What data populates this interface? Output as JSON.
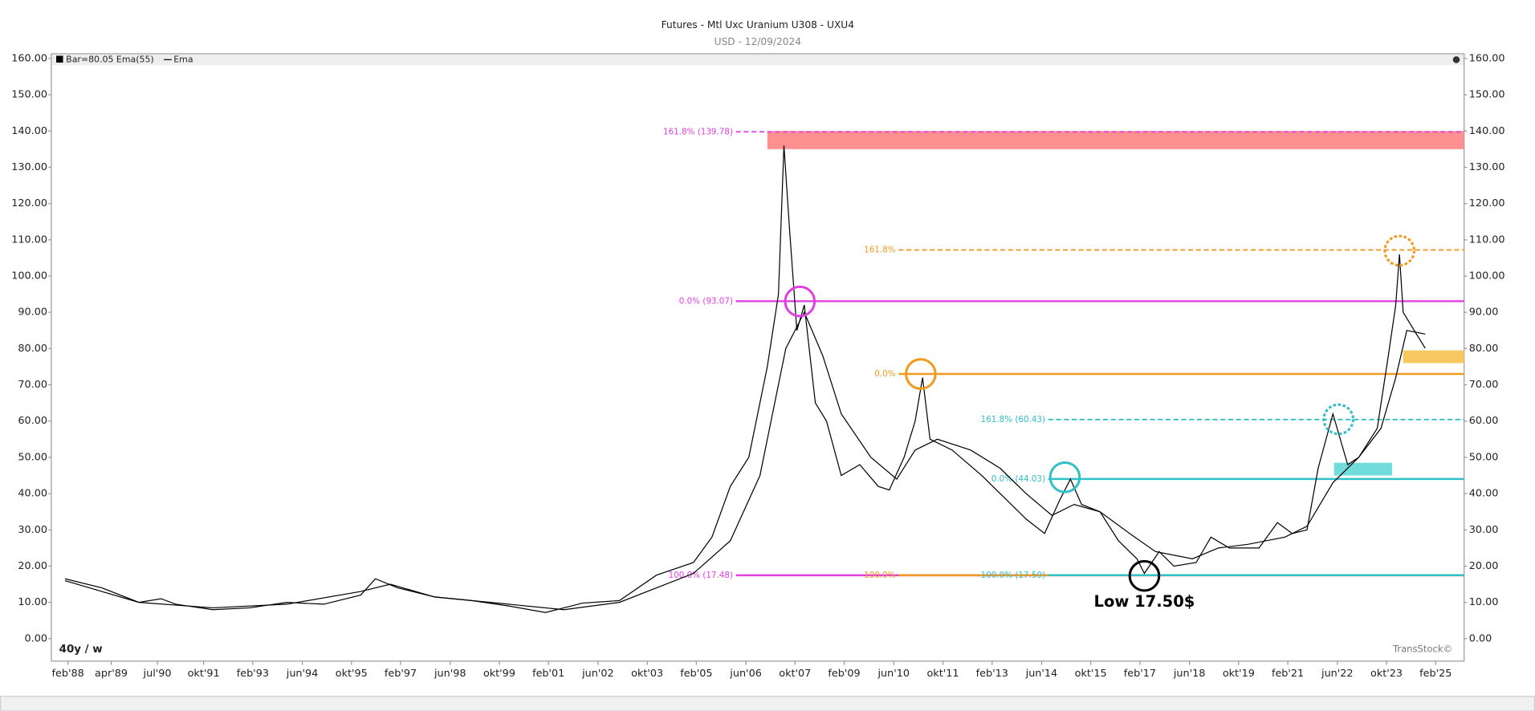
{
  "chart_data": {
    "type": "line",
    "title": "Futures - Mtl Uxc Uranium U308 - UXU4",
    "subtitle": "USD - 12/09/2024",
    "period_label": "40y / w",
    "watermark": "TransStock©",
    "xlim": [
      1987.63,
      2025.85
    ],
    "ylim": [
      -6.2,
      161.3
    ],
    "yticks": [
      {
        "value": 0,
        "label": "0.00"
      },
      {
        "value": 10,
        "label": "10.00"
      },
      {
        "value": 20,
        "label": "20.00"
      },
      {
        "value": 30,
        "label": "30.00"
      },
      {
        "value": 40,
        "label": "40.00"
      },
      {
        "value": 50,
        "label": "50.00"
      },
      {
        "value": 60,
        "label": "60.00"
      },
      {
        "value": 70,
        "label": "70.00"
      },
      {
        "value": 80,
        "label": "80.00"
      },
      {
        "value": 90,
        "label": "90.00"
      },
      {
        "value": 100,
        "label": "100.00"
      },
      {
        "value": 110,
        "label": "110.00"
      },
      {
        "value": 120,
        "label": "120.00"
      },
      {
        "value": 130,
        "label": "130.00"
      },
      {
        "value": 140,
        "label": "140.00"
      },
      {
        "value": 150,
        "label": "150.00"
      },
      {
        "value": 160,
        "label": "160.00"
      }
    ],
    "xticks": [
      {
        "value": 1988.08,
        "label": "feb'88"
      },
      {
        "value": 1989.25,
        "label": "apr'89"
      },
      {
        "value": 1990.5,
        "label": "jul'90"
      },
      {
        "value": 1991.75,
        "label": "okt'91"
      },
      {
        "value": 1993.08,
        "label": "feb'93"
      },
      {
        "value": 1994.42,
        "label": "jun'94"
      },
      {
        "value": 1995.75,
        "label": "okt'95"
      },
      {
        "value": 1997.08,
        "label": "feb'97"
      },
      {
        "value": 1998.42,
        "label": "jun'98"
      },
      {
        "value": 1999.75,
        "label": "okt'99"
      },
      {
        "value": 2001.08,
        "label": "feb'01"
      },
      {
        "value": 2002.42,
        "label": "jun'02"
      },
      {
        "value": 2003.75,
        "label": "okt'03"
      },
      {
        "value": 2005.08,
        "label": "feb'05"
      },
      {
        "value": 2006.42,
        "label": "jun'06"
      },
      {
        "value": 2007.75,
        "label": "okt'07"
      },
      {
        "value": 2009.08,
        "label": "feb'09"
      },
      {
        "value": 2010.42,
        "label": "jun'10"
      },
      {
        "value": 2011.75,
        "label": "okt'11"
      },
      {
        "value": 2013.08,
        "label": "feb'13"
      },
      {
        "value": 2014.42,
        "label": "jun'14"
      },
      {
        "value": 2015.75,
        "label": "okt'15"
      },
      {
        "value": 2017.08,
        "label": "feb'17"
      },
      {
        "value": 2018.42,
        "label": "jun'18"
      },
      {
        "value": 2019.75,
        "label": "okt'19"
      },
      {
        "value": 2021.08,
        "label": "feb'21"
      },
      {
        "value": 2022.42,
        "label": "jun'22"
      },
      {
        "value": 2023.75,
        "label": "okt'23"
      },
      {
        "value": 2025.08,
        "label": "feb'25"
      }
    ],
    "series": [
      {
        "name": "Bar=80.05 Ema(55)",
        "color": "#000000",
        "x": [
          1988,
          1989,
          1990,
          1990.6,
          1991,
          1992,
          1993,
          1994,
          1995,
          1996,
          1996.4,
          1997,
          1998,
          1999,
          2000,
          2001,
          2001.5,
          2002,
          2003,
          2004,
          2005,
          2005.5,
          2006,
          2006.5,
          2007,
          2007.3,
          2007.45,
          2007.6,
          2007.8,
          2008,
          2008.3,
          2008.6,
          2009,
          2009.5,
          2010,
          2010.3,
          2010.7,
          2011,
          2011.2,
          2011.4,
          2012,
          2012.8,
          2013.3,
          2014,
          2014.5,
          2014.9,
          2015.2,
          2015.5,
          2016,
          2016.5,
          2017,
          2017.2,
          2017.6,
          2018,
          2018.6,
          2019,
          2019.5,
          2020.3,
          2020.8,
          2021.2,
          2021.6,
          2021.9,
          2022.3,
          2022.7,
          2023,
          2023.5,
          2023.8,
          2024,
          2024.1,
          2024.2,
          2024.5,
          2024.8
        ],
        "values": [
          16.5,
          14,
          10,
          11,
          9.5,
          8,
          8.5,
          10,
          9.5,
          12,
          16.5,
          14,
          11.5,
          10.5,
          9,
          7.2,
          8.5,
          9.8,
          10.5,
          17.5,
          21,
          28,
          42,
          50,
          75,
          95,
          136,
          113,
          85,
          92,
          65,
          60,
          45,
          48,
          42,
          41,
          50,
          60,
          72,
          55,
          52,
          45,
          40,
          33,
          29,
          38,
          44,
          37,
          35,
          27,
          22,
          18,
          24,
          20,
          21,
          28,
          25,
          25,
          32,
          29,
          30,
          47,
          62,
          48,
          50,
          58,
          78,
          92,
          106,
          90,
          85,
          80.05
        ]
      },
      {
        "name": "Ema",
        "color": "#000000",
        "x": [
          1988,
          1990,
          1992,
          1994,
          1996,
          1996.8,
          1998,
          2000,
          2001.5,
          2003,
          2004,
          2005,
          2006,
          2006.8,
          2007.5,
          2008,
          2008.5,
          2009,
          2009.8,
          2010.5,
          2011,
          2011.6,
          2012.5,
          2013.3,
          2014,
          2014.7,
          2015.3,
          2016,
          2016.8,
          2017.5,
          2018.5,
          2019.2,
          2020,
          2021,
          2021.6,
          2022.3,
          2023,
          2023.6,
          2024,
          2024.3,
          2024.8
        ],
        "values": [
          16,
          10,
          8.5,
          9.5,
          13,
          15,
          11.5,
          9.5,
          8,
          10,
          14,
          18,
          27,
          45,
          80,
          90,
          78,
          62,
          50,
          44,
          52,
          55,
          52,
          47,
          40,
          34,
          37,
          35,
          29,
          24,
          22,
          25,
          26,
          28,
          31,
          43,
          50,
          58,
          72,
          85,
          84
        ]
      }
    ],
    "levels": [
      {
        "label": "161.8% (139.78)",
        "value": 139.78,
        "from": 2006.15,
        "color": "#e040e0",
        "dashed": true
      },
      {
        "label": "0.0% (93.07)",
        "value": 93.07,
        "from": 2006.15,
        "color": "#e040e0",
        "dashed": false
      },
      {
        "label": "161.8%",
        "value": 107.2,
        "from": 2010.55,
        "color": "#f09a20",
        "dashed": true
      },
      {
        "label": "0.0%",
        "value": 73,
        "from": 2010.55,
        "color": "#f09a20",
        "dashed": false
      },
      {
        "label": "161.8% (60.43)",
        "value": 60.43,
        "from": 2014.6,
        "color": "#30c0c8",
        "dashed": true
      },
      {
        "label": "0.0% (44.03)",
        "value": 44.03,
        "from": 2014.6,
        "color": "#30c0c8",
        "dashed": false
      },
      {
        "label": "100.0% (17.48)",
        "value": 17.48,
        "from": 2006.15,
        "color": "#e040e0",
        "dashed": false
      },
      {
        "label": "100.0%",
        "value": 17.48,
        "from": 2010.55,
        "color": "#f09a20",
        "dashed": false
      },
      {
        "label": "100.0% (17.50)",
        "value": 17.5,
        "from": 2014.6,
        "color": "#30c0c8",
        "dashed": false
      }
    ],
    "zones": [
      {
        "x": [
          2007.0,
          2025.85
        ],
        "y": [
          135,
          140
        ],
        "color": "#ff9090"
      },
      {
        "x": [
          2024.2,
          2025.85
        ],
        "y": [
          76,
          79.5
        ],
        "color": "#f8c860"
      },
      {
        "x": [
          2022.33,
          2023.9
        ],
        "y": [
          45,
          48.5
        ],
        "color": "#70dcdc"
      }
    ],
    "markers": [
      {
        "x": 2007.88,
        "y": 93,
        "color": "#e040e0",
        "dashed": false
      },
      {
        "x": 2011.15,
        "y": 73,
        "color": "#f09a20",
        "dashed": false
      },
      {
        "x": 2015.05,
        "y": 44.5,
        "color": "#30c0c8",
        "dashed": false
      },
      {
        "x": 2017.2,
        "y": 17.3,
        "color": "#000000",
        "dashed": false
      },
      {
        "x": 2022.45,
        "y": 60.5,
        "color": "#30c0c8",
        "dashed": true
      },
      {
        "x": 2024.1,
        "y": 107,
        "color": "#f09a20",
        "dashed": true
      }
    ],
    "annotation": {
      "text": "Low 17.50$",
      "x": 2017.2,
      "y": 10
    }
  }
}
